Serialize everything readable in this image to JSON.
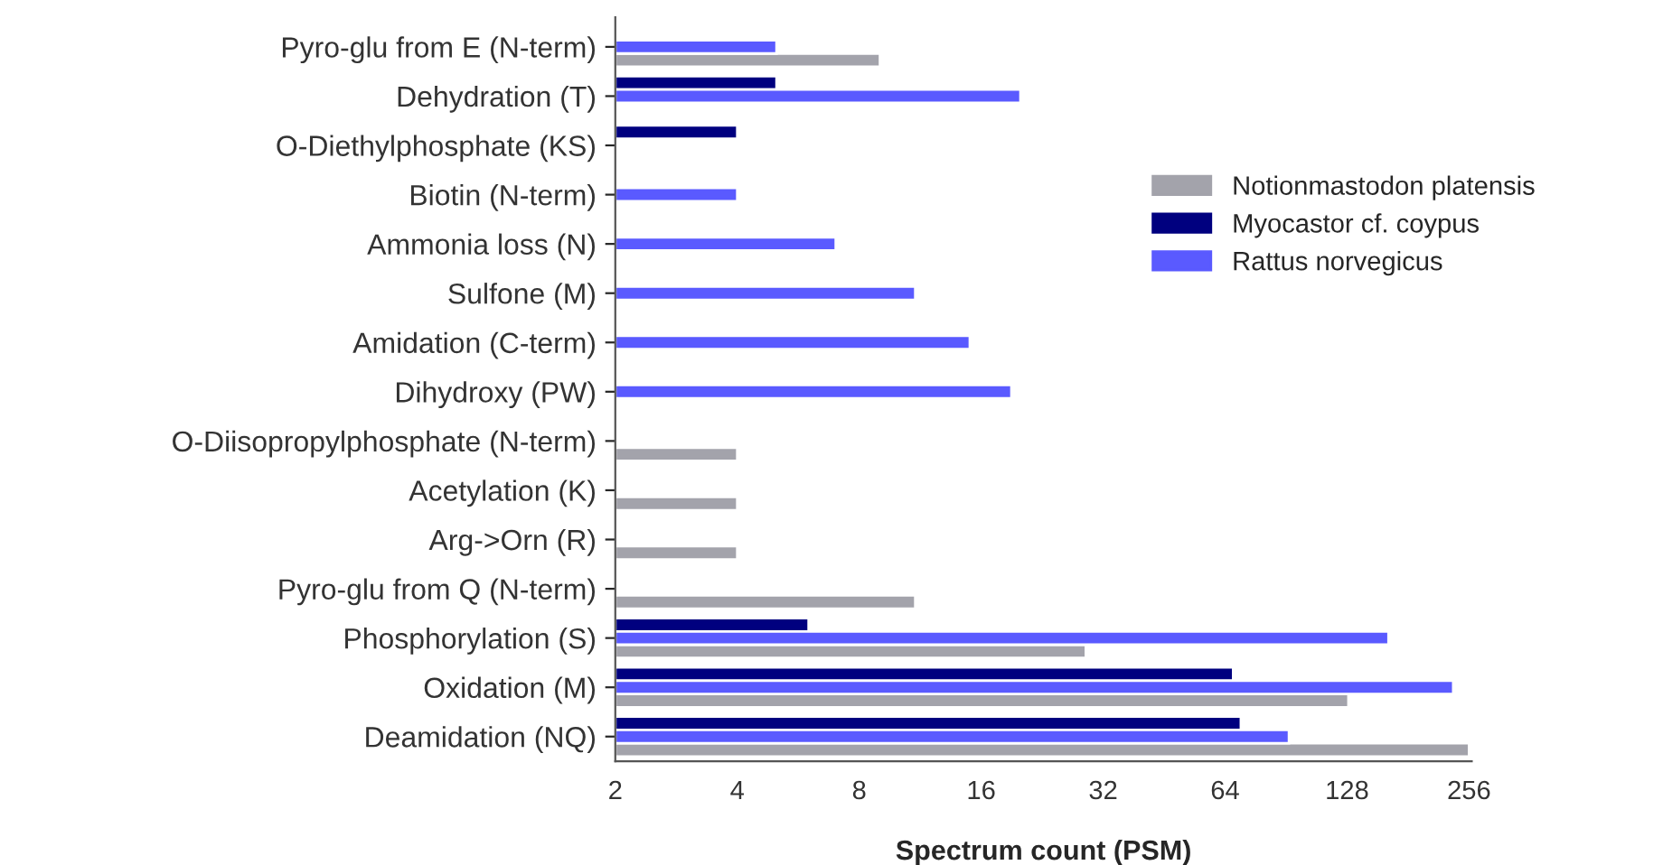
{
  "chart_data": {
    "type": "bar",
    "orientation": "horizontal",
    "xlabel": "Spectrum count (PSM)",
    "log": "x",
    "categories": [
      "Pyro-glu from E (N-term)",
      "Dehydration (T)",
      "O-Diethylphosphate (KS)",
      "Biotin (N-term)",
      "Ammonia loss (N)",
      "Sulfone (M)",
      "Amidation (C-term)",
      "Dihydroxy (PW)",
      "O-Diisopropylphosphate (N-term)",
      "Acetylation (K)",
      "Arg->Orn (R)",
      "Pyro-glu from Q (N-term)",
      "Phosphorylation (S)",
      "Oxidation (M)",
      "Deamidation (NQ)"
    ],
    "series": [
      {
        "name": "Notionmastodon platensis",
        "color": "#a3a3ab",
        "values": [
          9,
          null,
          null,
          null,
          null,
          null,
          null,
          null,
          4,
          4,
          4,
          11,
          29,
          129,
          256
        ]
      },
      {
        "name": "Myocastor cf. coypus",
        "color": "#00007f",
        "values": [
          null,
          5,
          4,
          null,
          null,
          null,
          null,
          null,
          null,
          null,
          null,
          null,
          6,
          67,
          70
        ]
      },
      {
        "name": "Rattus norvegicus",
        "color": "#5a5aff",
        "values": [
          5,
          20,
          null,
          4,
          7,
          11,
          15,
          19,
          null,
          null,
          null,
          null,
          162,
          234,
          92
        ]
      }
    ],
    "xlim": [
      2,
      260
    ],
    "xticks": [
      2,
      4,
      8,
      16,
      32,
      64,
      128,
      256
    ],
    "grid": false,
    "legend": "right"
  }
}
